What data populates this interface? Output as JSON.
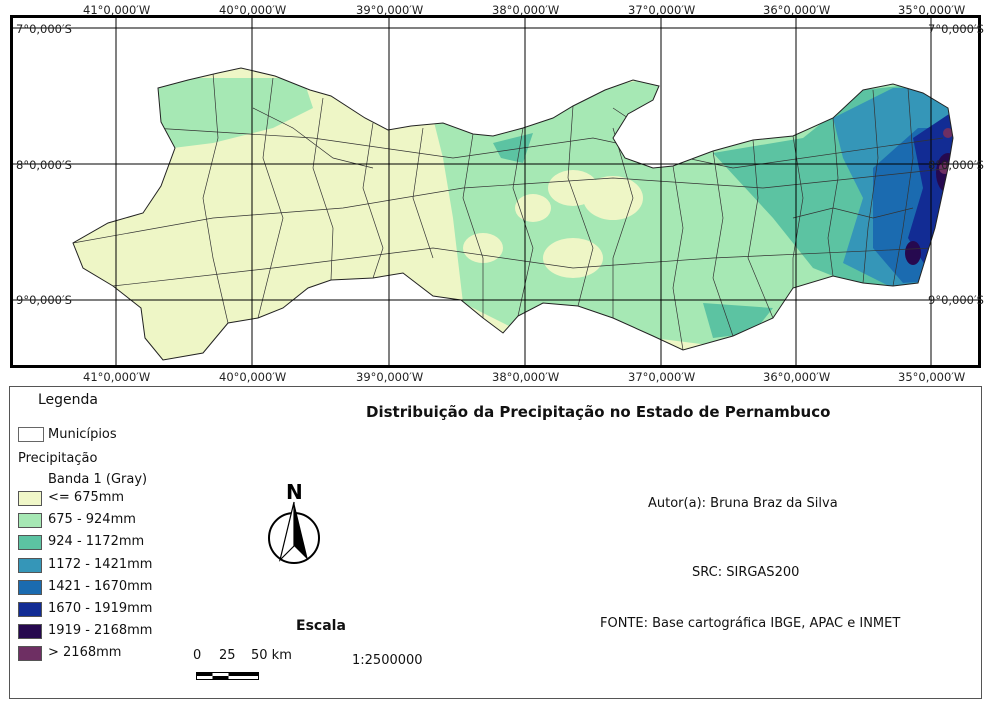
{
  "map": {
    "lon_labels": [
      "41°0,000′W",
      "40°0,000′W",
      "39°0,000′W",
      "38°0,000′W",
      "37°0,000′W",
      "36°0,000′W",
      "35°0,000′W"
    ],
    "lat_labels": [
      "7°0,000′S",
      "8°0,000′S",
      "9°0,000′S"
    ]
  },
  "legend": {
    "title": "Legenda",
    "municipios_label": "Municípios",
    "precip_label": "Precipitação",
    "band_label": "Banda 1 (Gray)",
    "classes": [
      {
        "label": "<= 675mm",
        "color": "#f0f7c8"
      },
      {
        "label": "675 - 924mm",
        "color": "#a6e8b4"
      },
      {
        "label": "924 - 1172mm",
        "color": "#5cc3a2"
      },
      {
        "label": "1172 - 1421mm",
        "color": "#3596b8"
      },
      {
        "label": "1421 - 1670mm",
        "color": "#1b6bb0"
      },
      {
        "label": "1670 - 1919mm",
        "color": "#122c94"
      },
      {
        "label": "1919 - 2168mm",
        "color": "#26094f"
      },
      {
        "label": "> 2168mm",
        "color": "#6e2f63"
      }
    ]
  },
  "title": "Distribuição da Precipitação no Estado de Pernambuco",
  "author": "Autor(a): Bruna Braz da Silva",
  "src": "SRC: SIRGAS200",
  "fonte": "FONTE: Base cartográfica IBGE, APAC e INMET",
  "north_label": "N",
  "scale": {
    "title": "Escala",
    "ticks": [
      "0",
      "25",
      "50 km"
    ],
    "ratio": "1:2500000"
  }
}
